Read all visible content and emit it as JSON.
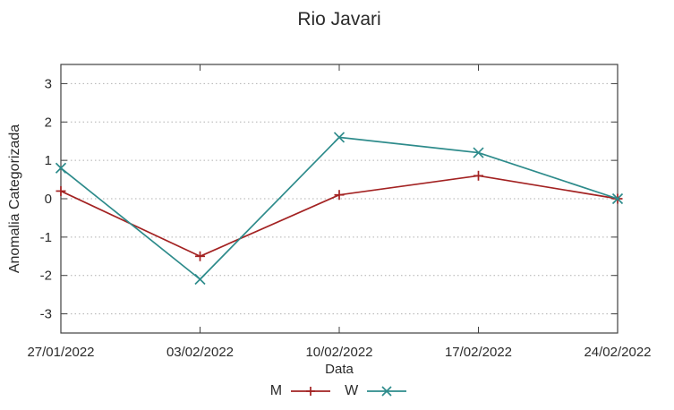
{
  "title": "Rio Javari",
  "chart_data": {
    "type": "line",
    "title": "Rio Javari",
    "xlabel": "Data",
    "ylabel": "Anomalia Categorizada",
    "categories": [
      "27/01/2022",
      "03/02/2022",
      "10/02/2022",
      "17/02/2022",
      "24/02/2022"
    ],
    "series": [
      {
        "name": "M",
        "color": "#a32222",
        "marker": "plus",
        "values": [
          0.2,
          -1.5,
          0.1,
          0.6,
          0.0
        ]
      },
      {
        "name": "W",
        "color": "#2d8b8b",
        "marker": "cross",
        "values": [
          0.8,
          -2.1,
          1.6,
          1.2,
          0.0
        ]
      }
    ],
    "ylim": [
      -3.5,
      3.5
    ],
    "yticks": [
      -3,
      -2,
      -1,
      0,
      1,
      2,
      3
    ],
    "grid": true,
    "grid_style": "dotted",
    "legend_position": "bottom-center"
  },
  "colors": {
    "background": "#ffffff",
    "border": "#404040",
    "grid": "#b0b0b0",
    "text": "#2a2a2a",
    "series_m": "#a32222",
    "series_w": "#2d8b8b"
  }
}
